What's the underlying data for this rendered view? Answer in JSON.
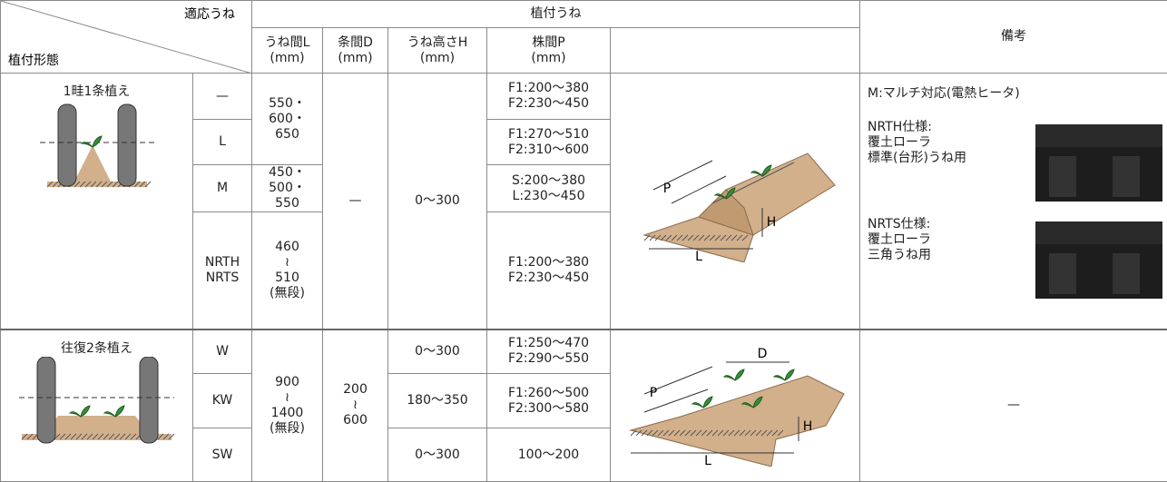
{
  "header": {
    "corner_top": "適応うね",
    "corner_bottom": "植付形態",
    "group": "植付うね",
    "columns": [
      [
        "うね間L",
        "(mm)"
      ],
      [
        "条間D",
        "(mm)"
      ],
      [
        "うね高さH",
        "(mm)"
      ],
      [
        "株間P",
        "(mm)"
      ]
    ],
    "remarks": "備考"
  },
  "sections": [
    {
      "form": "1畦1条植え",
      "variants": [
        [
          "—"
        ],
        [
          "L"
        ],
        [
          "M"
        ],
        [
          "NRTH",
          "NRTS"
        ]
      ],
      "row_spacing": [
        [
          "550・",
          "600・",
          "650"
        ],
        [
          "450・",
          "500・",
          "550"
        ],
        [
          "460",
          "≀",
          "510",
          "(無段)"
        ]
      ],
      "bed_spacing": [
        "—"
      ],
      "bed_height": [
        "0～300"
      ],
      "plant_spacing": [
        [
          "F1:200～380",
          "F2:230～450"
        ],
        [
          "F1:270～510",
          "F2:310～600"
        ],
        [
          "S:200～380",
          "L:230～450"
        ],
        [
          "F1:200～380",
          "F2:230～450"
        ]
      ],
      "diagram_labels": [
        "P",
        "H",
        "L"
      ],
      "remarks": {
        "note": "M:マルチ対応(電熱ヒータ)",
        "items": [
          [
            "NRTH仕様:",
            "覆土ローラ",
            "標準(台形)うね用"
          ],
          [
            "NRTS仕様:",
            "覆土ローラ",
            "三角うね用"
          ]
        ]
      }
    },
    {
      "form": "往復2条植え",
      "variants": [
        [
          "W"
        ],
        [
          "KW"
        ],
        [
          "SW"
        ]
      ],
      "row_spacing": [
        [
          "900",
          "≀",
          "1400",
          "(無段)"
        ]
      ],
      "bed_spacing": [
        [
          "200",
          "≀",
          "600"
        ]
      ],
      "bed_height": [
        "0～300",
        "180～350",
        "0～300"
      ],
      "plant_spacing": [
        [
          "F1:250～470",
          "F2:290～550"
        ],
        [
          "F1:260～500",
          "F2:300～580"
        ],
        [
          "100～200"
        ]
      ],
      "diagram_labels": [
        "D",
        "P",
        "H",
        "L"
      ],
      "remarks": "—"
    }
  ]
}
